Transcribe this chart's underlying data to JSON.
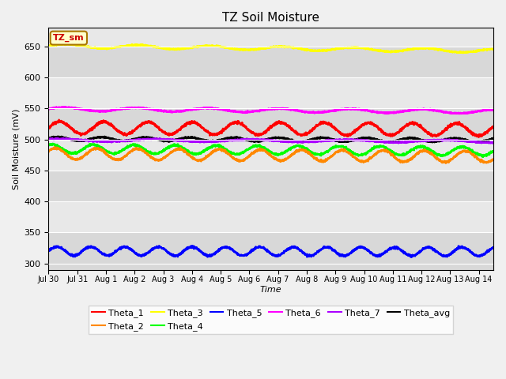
{
  "title": "TZ Soil Moisture",
  "xlabel": "Time",
  "ylabel": "Soil Moisture (mV)",
  "ylim": [
    290,
    680
  ],
  "background_color": "#f0f0f0",
  "plot_bg_color": "#e8e8e8",
  "tick_labels": [
    "Jul 30",
    "Jul 31",
    "Aug 1",
    "Aug 2",
    "Aug 3",
    "Aug 4",
    "Aug 5",
    "Aug 6",
    "Aug 7",
    "Aug 8",
    "Aug 9",
    "Aug 10",
    "Aug 11",
    "Aug 12",
    "Aug 13",
    "Aug 14"
  ],
  "annotation_text": "TZ_sm",
  "annotation_color": "#cc0000",
  "annotation_bg": "#ffffcc",
  "annotation_border": "#aa7700",
  "series_params": {
    "Theta_1": {
      "color": "#ff0000",
      "base": 519,
      "amp": 10,
      "freq": 0.65,
      "drift": -3,
      "phase": 0.0,
      "noise": 1.0,
      "lw": 1.8
    },
    "Theta_2": {
      "color": "#ff8800",
      "base": 477,
      "amp": 9,
      "freq": 0.7,
      "drift": -5,
      "phase": 0.5,
      "noise": 0.8,
      "lw": 1.8
    },
    "Theta_3": {
      "color": "#ffff00",
      "base": 651,
      "amp": 3,
      "freq": 0.4,
      "drift": -8,
      "phase": 0.0,
      "noise": 0.5,
      "lw": 1.8
    },
    "Theta_4": {
      "color": "#00ff00",
      "base": 485,
      "amp": 7,
      "freq": 0.7,
      "drift": -4,
      "phase": 1.0,
      "noise": 0.8,
      "lw": 1.8
    },
    "Theta_5": {
      "color": "#0000ff",
      "base": 320,
      "amp": 7,
      "freq": 0.85,
      "drift": -1,
      "phase": 0.0,
      "noise": 0.8,
      "lw": 1.8
    },
    "Theta_6": {
      "color": "#ff00ff",
      "base": 549,
      "amp": 3,
      "freq": 0.4,
      "drift": -4,
      "phase": 0.2,
      "noise": 0.5,
      "lw": 1.8
    },
    "Theta_7": {
      "color": "#aa00ff",
      "base": 499,
      "amp": 2,
      "freq": 0.3,
      "drift": -2,
      "phase": 0.8,
      "noise": 0.5,
      "lw": 1.8
    },
    "Theta_avg": {
      "color": "#000000",
      "base": 501,
      "amp": 3,
      "freq": 0.65,
      "drift": -2,
      "phase": 0.3,
      "noise": 0.5,
      "lw": 1.8
    }
  },
  "line_order": [
    "Theta_3",
    "Theta_6",
    "Theta_1",
    "Theta_avg",
    "Theta_7",
    "Theta_4",
    "Theta_2",
    "Theta_5"
  ],
  "legend_order": [
    "Theta_1",
    "Theta_2",
    "Theta_3",
    "Theta_4",
    "Theta_5",
    "Theta_6",
    "Theta_7",
    "Theta_avg"
  ]
}
